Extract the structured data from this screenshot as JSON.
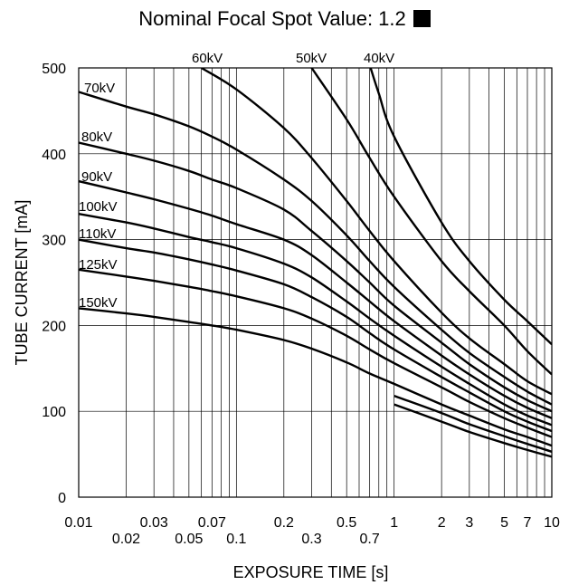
{
  "chart_data": {
    "type": "line",
    "title": "Nominal Focal Spot Value: 1.2",
    "xlabel": "EXPOSURE TIME  [s]",
    "ylabel": "TUBE CURRENT  [mA]",
    "xscale": "log",
    "xlim": [
      0.01,
      10
    ],
    "ylim": [
      0,
      500
    ],
    "grid": true,
    "x_tick_labels_upper": [
      "0.01",
      "0.03",
      "0.07",
      "0.2",
      "0.5",
      "1",
      "2",
      "3",
      "5",
      "7",
      "10"
    ],
    "x_tick_labels_lower": [
      "0.02",
      "0.05",
      "0.1",
      "0.3",
      "0.7"
    ],
    "y_tick_labels": [
      "0",
      "100",
      "200",
      "300",
      "400",
      "500"
    ],
    "series": [
      {
        "name": "40kV",
        "x": [
          0.71,
          0.8,
          1,
          2,
          3,
          5,
          7,
          10
        ],
        "y": [
          500,
          470,
          420,
          320,
          275,
          230,
          205,
          178
        ]
      },
      {
        "name": "50kV",
        "x": [
          0.3,
          0.5,
          0.7,
          1,
          2,
          3,
          5,
          7,
          10
        ],
        "y": [
          500,
          440,
          395,
          350,
          275,
          240,
          200,
          170,
          143
        ]
      },
      {
        "name": "60kV",
        "x": [
          0.06,
          0.1,
          0.2,
          0.3,
          0.5,
          0.7,
          1,
          2,
          3,
          5,
          7,
          10
        ],
        "y": [
          500,
          475,
          430,
          395,
          345,
          310,
          275,
          215,
          185,
          155,
          135,
          120
        ]
      },
      {
        "name": "70kV",
        "x": [
          0.01,
          0.02,
          0.03,
          0.05,
          0.07,
          0.1,
          0.2,
          0.3,
          0.5,
          0.7,
          1,
          2,
          3,
          5,
          7,
          10
        ],
        "y": [
          472,
          455,
          446,
          432,
          420,
          405,
          370,
          345,
          305,
          275,
          245,
          195,
          168,
          140,
          123,
          108
        ]
      },
      {
        "name": "80kV",
        "x": [
          0.01,
          0.02,
          0.03,
          0.05,
          0.07,
          0.1,
          0.2,
          0.3,
          0.5,
          0.7,
          1,
          2,
          3,
          5,
          7,
          10
        ],
        "y": [
          413,
          400,
          392,
          380,
          370,
          360,
          335,
          310,
          275,
          250,
          223,
          180,
          155,
          128,
          113,
          100
        ]
      },
      {
        "name": "90kV",
        "x": [
          0.01,
          0.02,
          0.03,
          0.05,
          0.07,
          0.1,
          0.2,
          0.3,
          0.5,
          0.7,
          1,
          2,
          3,
          5,
          7,
          10
        ],
        "y": [
          368,
          355,
          347,
          336,
          328,
          318,
          300,
          282,
          250,
          228,
          205,
          165,
          143,
          118,
          104,
          92
        ]
      },
      {
        "name": "100kV",
        "x": [
          0.01,
          0.02,
          0.03,
          0.05,
          0.07,
          0.1,
          0.2,
          0.3,
          0.5,
          0.7,
          1,
          2,
          3,
          5,
          7,
          10
        ],
        "y": [
          330,
          320,
          313,
          303,
          297,
          290,
          272,
          256,
          228,
          208,
          188,
          152,
          132,
          108,
          95,
          84
        ]
      },
      {
        "name": "110kV",
        "x": [
          0.01,
          0.02,
          0.03,
          0.05,
          0.07,
          0.1,
          0.2,
          0.3,
          0.5,
          0.7,
          1,
          2,
          3,
          5,
          7,
          10
        ],
        "y": [
          300,
          290,
          285,
          277,
          271,
          264,
          248,
          233,
          210,
          191,
          172,
          140,
          122,
          100,
          88,
          77
        ]
      },
      {
        "name": "125kV",
        "x": [
          0.01,
          0.02,
          0.03,
          0.05,
          0.07,
          0.1,
          0.2,
          0.3,
          0.5,
          0.7,
          1,
          2,
          3,
          5,
          7,
          10
        ],
        "y": [
          265,
          257,
          252,
          245,
          240,
          234,
          220,
          208,
          188,
          172,
          156,
          128,
          111,
          92,
          81,
          70
        ]
      },
      {
        "name": "150kV",
        "x": [
          0.01,
          0.02,
          0.03,
          0.05,
          0.07,
          0.1,
          0.2,
          0.3,
          0.5,
          0.7,
          1,
          2,
          3,
          5,
          7,
          10
        ],
        "y": [
          220,
          214,
          210,
          204,
          200,
          195,
          183,
          173,
          157,
          144,
          132,
          108,
          95,
          79,
          70,
          60
        ]
      },
      {
        "name": "",
        "x": [
          1,
          2,
          3,
          5,
          7,
          10
        ],
        "y": [
          118,
          98,
          85,
          71,
          62,
          53
        ]
      },
      {
        "name": "",
        "x": [
          1,
          2,
          3,
          5,
          7,
          10
        ],
        "y": [
          108,
          88,
          76,
          63,
          55,
          47
        ]
      }
    ]
  }
}
